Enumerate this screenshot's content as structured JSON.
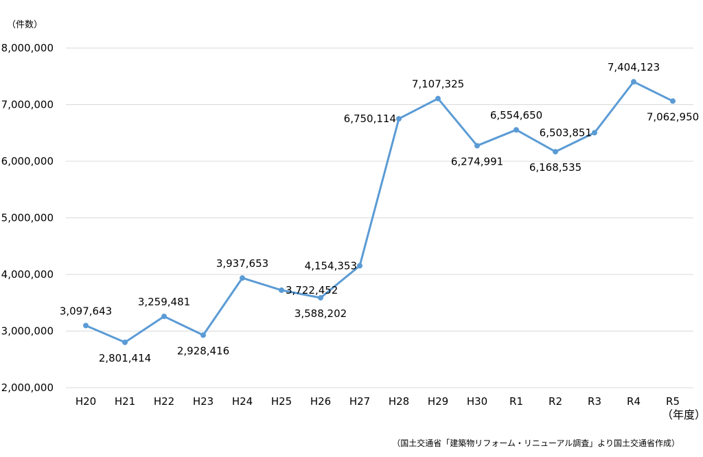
{
  "chart_data": {
    "type": "line",
    "y_unit_label": "（件数）",
    "x_unit_label": "（年度）",
    "source_note": "（国土交通省「建築物リフォーム・リニューアル調査」より国土交通省作成）",
    "categories": [
      "H20",
      "H21",
      "H22",
      "H23",
      "H24",
      "H25",
      "H26",
      "H27",
      "H28",
      "H29",
      "H30",
      "R1",
      "R2",
      "R3",
      "R4",
      "R5"
    ],
    "series": [
      {
        "values": [
          3097643,
          2801414,
          3259481,
          2928416,
          3937653,
          3722452,
          3588202,
          4154353,
          6750114,
          7107325,
          6274991,
          6554650,
          6168535,
          6503851,
          7404123,
          7062950
        ],
        "data_labels": [
          "3,097,643",
          "2,801,414",
          "3,259,481",
          "2,928,416",
          "3,937,653",
          "3,722,452",
          "3,588,202",
          "4,154,353",
          "6,750,114",
          "7,107,325",
          "6,274,991",
          "6,554,650",
          "6,168,535",
          "6,503,851",
          "7,404,123",
          "7,062,950"
        ]
      }
    ],
    "ylim": [
      2000000,
      8000000
    ],
    "yticks": [
      2000000,
      3000000,
      4000000,
      5000000,
      6000000,
      7000000,
      8000000
    ],
    "ytick_labels": [
      "2,000,000",
      "3,000,000",
      "4,000,000",
      "5,000,000",
      "6,000,000",
      "7,000,000",
      "8,000,000"
    ],
    "grid": true,
    "legend": "none",
    "line_color": "#5B9BD5",
    "grid_color": "#D9D9D9"
  }
}
